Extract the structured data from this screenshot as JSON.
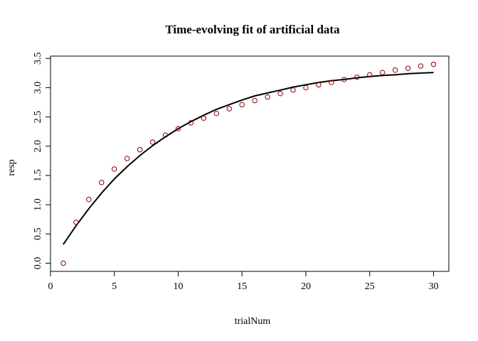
{
  "chart_data": {
    "type": "scatter",
    "title": "Time-evolving fit of artificial data",
    "xlabel": "trialNum",
    "ylabel": "resp",
    "xlim": [
      0,
      31.2
    ],
    "ylim": [
      -0.14,
      3.54
    ],
    "x_ticks": [
      0,
      5,
      10,
      15,
      20,
      25,
      30
    ],
    "x_tick_labels": [
      "0",
      "5",
      "10",
      "15",
      "20",
      "25",
      "30"
    ],
    "y_ticks": [
      0.0,
      0.5,
      1.0,
      1.5,
      2.0,
      2.5,
      3.0,
      3.5
    ],
    "y_tick_labels": [
      "0.0",
      "0.5",
      "1.0",
      "1.5",
      "2.0",
      "2.5",
      "3.0",
      "3.5"
    ],
    "grid": false,
    "series": [
      {
        "kind": "points",
        "marker": "open-circle",
        "color": "#8b0000",
        "x": [
          1,
          2,
          3,
          4,
          5,
          6,
          7,
          8,
          9,
          10,
          11,
          12,
          13,
          14,
          15,
          16,
          17,
          18,
          19,
          20,
          21,
          22,
          23,
          24,
          25,
          26,
          27,
          28,
          29,
          30
        ],
        "values": [
          0.0,
          0.7,
          1.09,
          1.38,
          1.61,
          1.79,
          1.94,
          2.07,
          2.19,
          2.3,
          2.4,
          2.48,
          2.56,
          2.64,
          2.71,
          2.78,
          2.84,
          2.9,
          2.96,
          3.0,
          3.05,
          3.09,
          3.14,
          3.18,
          3.22,
          3.26,
          3.3,
          3.33,
          3.37,
          3.4
        ]
      },
      {
        "kind": "line",
        "color": "#000000",
        "x": [
          1,
          2,
          3,
          4,
          5,
          6,
          7,
          8,
          9,
          10,
          11,
          12,
          13,
          14,
          15,
          16,
          17,
          18,
          19,
          20,
          21,
          22,
          23,
          24,
          25,
          26,
          27,
          28,
          29,
          30
        ],
        "values": [
          0.32,
          0.64,
          0.93,
          1.2,
          1.44,
          1.65,
          1.84,
          2.01,
          2.16,
          2.3,
          2.42,
          2.53,
          2.63,
          2.71,
          2.79,
          2.86,
          2.91,
          2.96,
          3.01,
          3.05,
          3.09,
          3.12,
          3.14,
          3.17,
          3.19,
          3.21,
          3.22,
          3.24,
          3.25,
          3.26
        ]
      }
    ]
  }
}
